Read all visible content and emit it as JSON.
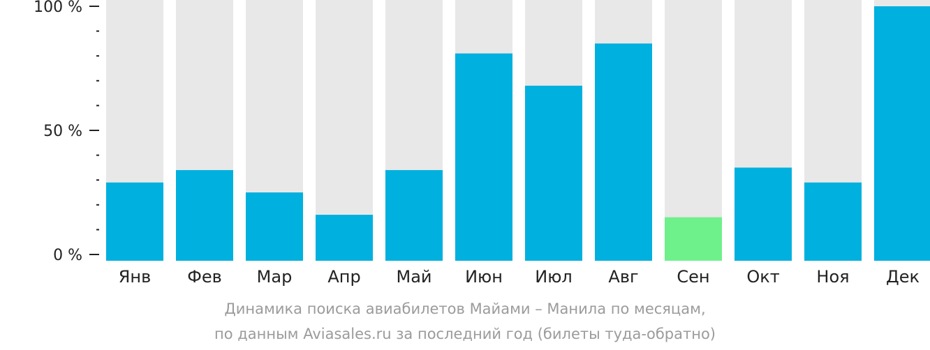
{
  "chart_data": {
    "type": "bar",
    "title": "",
    "xlabel": "",
    "ylabel": "",
    "ylim": [
      0,
      100
    ],
    "y_ticks": [
      {
        "value": 0,
        "label": "0 %"
      },
      {
        "value": 50,
        "label": "50 %"
      },
      {
        "value": 100,
        "label": "100 %"
      }
    ],
    "y_minor_tick_step": 10,
    "categories": [
      "Янв",
      "Фев",
      "Мар",
      "Апр",
      "Май",
      "Июн",
      "Июл",
      "Авг",
      "Сен",
      "Окт",
      "Ноя",
      "Дек"
    ],
    "values": [
      29,
      34,
      25,
      16,
      34,
      81,
      68,
      85,
      15,
      35,
      29,
      100
    ],
    "highlight_index": 8,
    "grid": false,
    "legend": "none"
  },
  "colors": {
    "bar": "#00b0de",
    "bar_highlight": "#6ef08a",
    "bar_background": "#e8e8e8",
    "axis": "#222222",
    "caption": "#9b9b9b"
  },
  "caption": {
    "line1": "Динамика поиска авиабилетов Майами – Манила по месяцам,",
    "line2": "по данным Aviasales.ru за последний год (билеты туда-обратно)"
  }
}
